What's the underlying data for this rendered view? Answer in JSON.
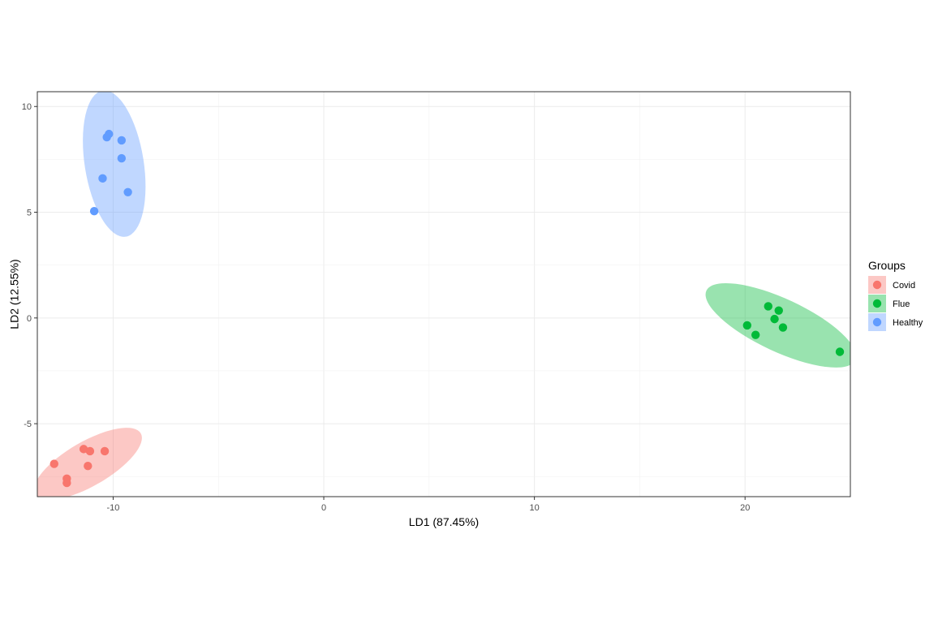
{
  "chart_data": {
    "type": "scatter",
    "title": "",
    "xlabel": "LD1 (87.45%)",
    "ylabel": "LD2 (12.55%)",
    "xlim": [
      -13.6,
      25.0
    ],
    "ylim": [
      -8.45,
      10.7
    ],
    "x_ticks": [
      -10,
      0,
      10,
      20
    ],
    "y_ticks": [
      -5,
      0,
      5,
      10
    ],
    "grid": true,
    "legend": {
      "title": "Groups",
      "position": "right"
    },
    "series": [
      {
        "name": "Covid",
        "color": "#F8766D",
        "ellipse_color": "#F8766D",
        "points": [
          {
            "x": -12.8,
            "y": -6.9
          },
          {
            "x": -11.4,
            "y": -6.2
          },
          {
            "x": -11.1,
            "y": -6.3
          },
          {
            "x": -10.4,
            "y": -6.3
          },
          {
            "x": -11.2,
            "y": -7.0
          },
          {
            "x": -12.2,
            "y": -7.6
          },
          {
            "x": -12.2,
            "y": -7.8
          }
        ],
        "ellipse": {
          "cx": -11.2,
          "cy": -6.9,
          "rx": 2.9,
          "ry": 1.05,
          "angle_deg": 30
        }
      },
      {
        "name": "Flue",
        "color": "#00BA38",
        "ellipse_color": "#00BA38",
        "points": [
          {
            "x": 21.1,
            "y": 0.55
          },
          {
            "x": 21.6,
            "y": 0.35
          },
          {
            "x": 21.4,
            "y": -0.05
          },
          {
            "x": 20.1,
            "y": -0.35
          },
          {
            "x": 21.8,
            "y": -0.45
          },
          {
            "x": 20.5,
            "y": -0.8
          },
          {
            "x": 24.5,
            "y": -1.6
          }
        ],
        "ellipse": {
          "cx": 21.7,
          "cy": -0.35,
          "rx": 3.9,
          "ry": 1.25,
          "angle_deg": -25
        }
      },
      {
        "name": "Healthy",
        "color": "#619CFF",
        "ellipse_color": "#619CFF",
        "points": [
          {
            "x": -10.2,
            "y": 8.7
          },
          {
            "x": -10.3,
            "y": 8.55
          },
          {
            "x": -9.6,
            "y": 8.4
          },
          {
            "x": -9.6,
            "y": 7.55
          },
          {
            "x": -10.5,
            "y": 6.6
          },
          {
            "x": -9.3,
            "y": 5.95
          },
          {
            "x": -10.9,
            "y": 5.05
          }
        ],
        "ellipse": {
          "cx": -9.95,
          "cy": 7.3,
          "rx": 1.4,
          "ry": 3.5,
          "angle_deg": 9
        }
      }
    ]
  }
}
